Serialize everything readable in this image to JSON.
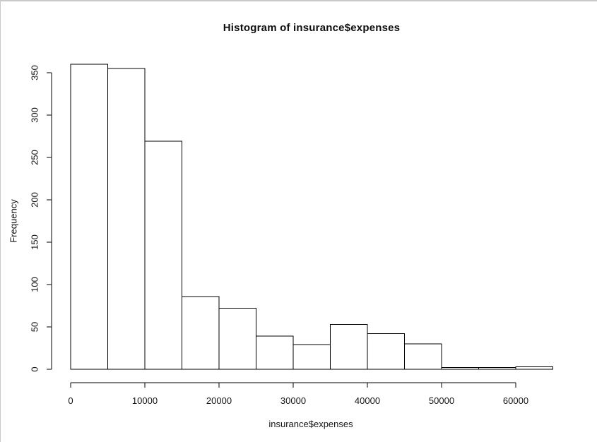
{
  "window": {
    "background": "#ffffff",
    "border_color": "#c9c9c9"
  },
  "chart_data": {
    "type": "bar",
    "subtype": "histogram",
    "title": "Histogram of insurance$expenses",
    "xlabel": "insurance$expenses",
    "ylabel": "Frequency",
    "bin_width": 5000,
    "bin_edges": [
      0,
      5000,
      10000,
      15000,
      20000,
      25000,
      30000,
      35000,
      40000,
      45000,
      50000,
      55000,
      60000,
      65000
    ],
    "counts": [
      360,
      355,
      269,
      86,
      72,
      39,
      29,
      53,
      42,
      30,
      2,
      2,
      3
    ],
    "x_ticks": [
      0,
      10000,
      20000,
      30000,
      40000,
      50000,
      60000
    ],
    "y_ticks": [
      0,
      50,
      100,
      150,
      200,
      250,
      300,
      350
    ],
    "xlim": [
      0,
      65000
    ],
    "ylim": [
      0,
      350
    ],
    "grid": false,
    "legend": null,
    "bar_fill": "#ffffff",
    "bar_stroke": "#000000",
    "axis_color": "#000000",
    "text_color": "#141414"
  }
}
